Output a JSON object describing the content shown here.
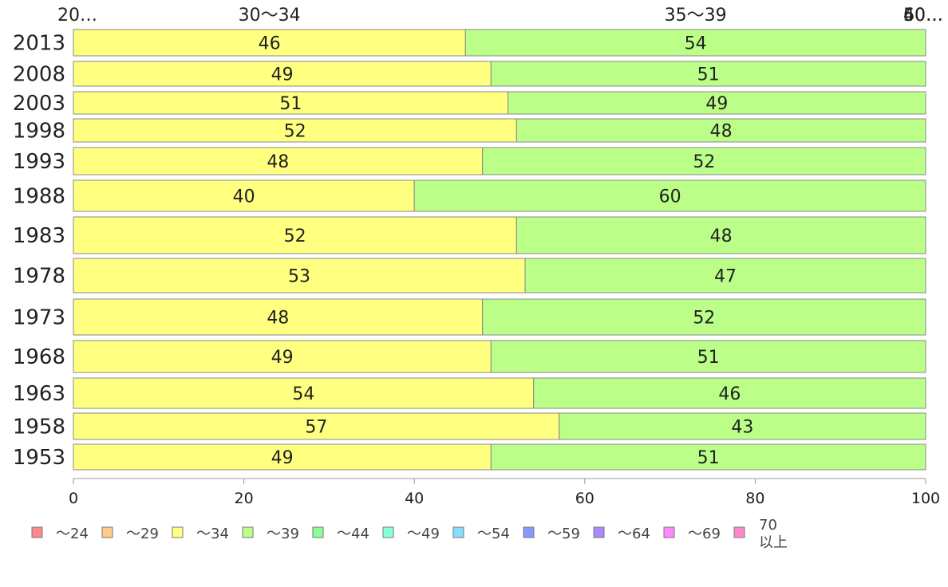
{
  "chart_data": {
    "type": "bar",
    "orientation": "horizontal",
    "stacked": true,
    "categories": [
      "2013",
      "2008",
      "2003",
      "1998",
      "1993",
      "1988",
      "1983",
      "1978",
      "1973",
      "1968",
      "1963",
      "1958",
      "1953"
    ],
    "series": [
      {
        "name": "～34",
        "color": "#ffff80",
        "values": [
          46,
          49,
          51,
          52,
          48,
          40,
          52,
          53,
          48,
          49,
          54,
          57,
          49
        ]
      },
      {
        "name": "～39",
        "color": "#bbff88",
        "values": [
          54,
          51,
          49,
          48,
          52,
          60,
          48,
          47,
          52,
          51,
          46,
          43,
          51
        ]
      }
    ],
    "top_labels": [
      "20…",
      "30～34",
      "35～39",
      "40…",
      "50…",
      "60…"
    ],
    "xlim": [
      0,
      100
    ],
    "xticks": [
      "0",
      "20",
      "40",
      "60",
      "80",
      "100"
    ],
    "grid": false,
    "legend_position": "bottom",
    "legend": [
      {
        "label": "～24",
        "color": "#ff8888"
      },
      {
        "label": "～29",
        "color": "#ffcc88"
      },
      {
        "label": "～34",
        "color": "#ffff80"
      },
      {
        "label": "～39",
        "color": "#bbff88"
      },
      {
        "label": "～44",
        "color": "#88ff99"
      },
      {
        "label": "～49",
        "color": "#88ffdd"
      },
      {
        "label": "～54",
        "color": "#88ddff"
      },
      {
        "label": "～59",
        "color": "#8899ff"
      },
      {
        "label": "～64",
        "color": "#aa88ff"
      },
      {
        "label": "～69",
        "color": "#ff88ff"
      },
      {
        "label": "70\n以上",
        "color": "#ff88cc"
      }
    ]
  }
}
